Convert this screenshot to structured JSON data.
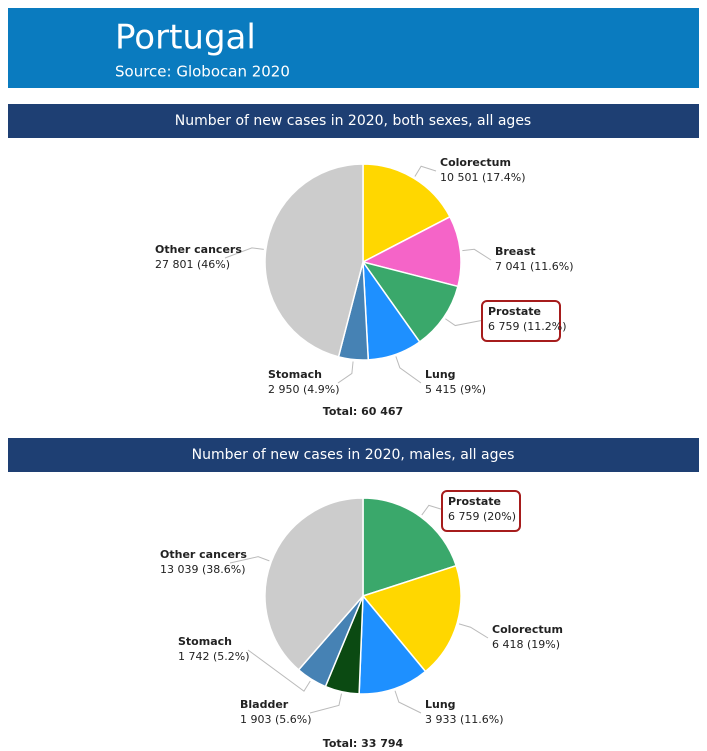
{
  "header": {
    "title": "Portugal",
    "subtitle": "Source: Globocan 2020"
  },
  "chart_data": [
    {
      "type": "pie",
      "title": "Number of new cases in 2020, both sexes, all ages",
      "categories": [
        "Colorectum",
        "Breast",
        "Prostate",
        "Lung",
        "Stomach",
        "Other cancers"
      ],
      "values": [
        10501,
        7041,
        6759,
        5415,
        2950,
        27801
      ],
      "value_labels": [
        "10 501 (17.4%)",
        "7 041 (11.6%)",
        "6 759 (11.2%)",
        "5 415 (9%)",
        "2 950 (4.9%)",
        "27 801 (46%)"
      ],
      "colors": [
        "#ffd700",
        "#f564c8",
        "#3aa86b",
        "#1e90ff",
        "#4682b4",
        "#cccccc"
      ],
      "total": "Total: 60 467"
    },
    {
      "type": "pie",
      "title": "Number of new cases in 2020, males, all ages",
      "categories": [
        "Prostate",
        "Colorectum",
        "Lung",
        "Bladder",
        "Stomach",
        "Other cancers"
      ],
      "values": [
        6759,
        6418,
        3933,
        1903,
        1742,
        13039
      ],
      "value_labels": [
        "6 759 (20%)",
        "6 418 (19%)",
        "3 933 (11.6%)",
        "1 903 (5.6%)",
        "1 742 (5.2%)",
        "13 039 (38.6%)"
      ],
      "colors": [
        "#3aa86b",
        "#ffd700",
        "#1e90ff",
        "#0b4a12",
        "#4682b4",
        "#cccccc"
      ],
      "total": "Total: 33 794"
    }
  ]
}
